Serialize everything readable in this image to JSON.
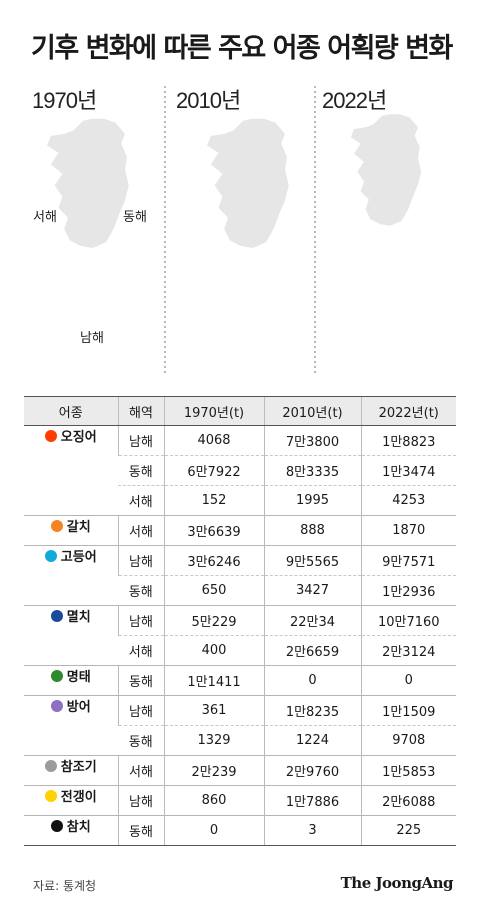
{
  "title": "기후 변화에 따른 주요 어종 어획량 변화",
  "source": "자료: 통계청",
  "publisher": "The JoongAng",
  "colors": {
    "background": "#ffffff",
    "land": "#e6e6e6",
    "divider": "#8a8a8a",
    "table_header_bg": "#ebebeb"
  },
  "chart_data": {
    "type": "table",
    "years": [
      "1970년",
      "2010년",
      "2022년"
    ],
    "region_labels": {
      "west": "서해",
      "east": "동해",
      "south": "남해"
    },
    "columns": [
      "어종",
      "해역",
      "1970년(t)",
      "2010년(t)",
      "2022년(t)"
    ],
    "species": [
      {
        "name": "오징어",
        "color": "#ff3d00",
        "rows": [
          {
            "sea": "남해",
            "v": [
              "4068",
              "7만3800",
              "1만8823"
            ],
            "t": [
              4068,
              73800,
              18823
            ]
          },
          {
            "sea": "동해",
            "v": [
              "6만7922",
              "8만3335",
              "1만3474"
            ],
            "t": [
              67922,
              83335,
              13474
            ]
          },
          {
            "sea": "서해",
            "v": [
              "152",
              "1995",
              "4253"
            ],
            "t": [
              152,
              1995,
              4253
            ]
          }
        ]
      },
      {
        "name": "갈치",
        "color": "#f5841f",
        "rows": [
          {
            "sea": "서해",
            "v": [
              "3만6639",
              "888",
              "1870"
            ],
            "t": [
              36639,
              888,
              1870
            ]
          }
        ]
      },
      {
        "name": "고등어",
        "color": "#12aadb",
        "rows": [
          {
            "sea": "남해",
            "v": [
              "3만6246",
              "9만5565",
              "9만7571"
            ],
            "t": [
              36246,
              95565,
              97571
            ]
          },
          {
            "sea": "동해",
            "v": [
              "650",
              "3427",
              "1만2936"
            ],
            "t": [
              650,
              3427,
              12936
            ]
          }
        ]
      },
      {
        "name": "멸치",
        "color": "#1b4a9c",
        "rows": [
          {
            "sea": "남해",
            "v": [
              "5만229",
              "22만34",
              "10만7160"
            ],
            "t": [
              50229,
              220034,
              107160
            ]
          },
          {
            "sea": "서해",
            "v": [
              "400",
              "2만6659",
              "2만3124"
            ],
            "t": [
              400,
              26659,
              23124
            ]
          }
        ]
      },
      {
        "name": "명태",
        "color": "#2e8b2e",
        "rows": [
          {
            "sea": "동해",
            "v": [
              "1만1411",
              "0",
              "0"
            ],
            "t": [
              11411,
              0,
              0
            ]
          }
        ]
      },
      {
        "name": "방어",
        "color": "#8e70c0",
        "rows": [
          {
            "sea": "남해",
            "v": [
              "361",
              "1만8235",
              "1만1509"
            ],
            "t": [
              361,
              18235,
              11509
            ]
          },
          {
            "sea": "동해",
            "v": [
              "1329",
              "1224",
              "9708"
            ],
            "t": [
              1329,
              1224,
              9708
            ]
          }
        ]
      },
      {
        "name": "참조기",
        "color": "#9b9b9b",
        "rows": [
          {
            "sea": "서해",
            "v": [
              "2만239",
              "2만9760",
              "1만5853"
            ],
            "t": [
              20239,
              29760,
              15853
            ]
          }
        ]
      },
      {
        "name": "전갱이",
        "color": "#ffd200",
        "rows": [
          {
            "sea": "남해",
            "v": [
              "860",
              "1만7886",
              "2만6088"
            ],
            "t": [
              860,
              17886,
              26088
            ]
          }
        ]
      },
      {
        "name": "참치",
        "color": "#111111",
        "rows": [
          {
            "sea": "동해",
            "v": [
              "0",
              "3",
              "225"
            ],
            "t": [
              0,
              3,
              225
            ]
          }
        ]
      }
    ]
  }
}
